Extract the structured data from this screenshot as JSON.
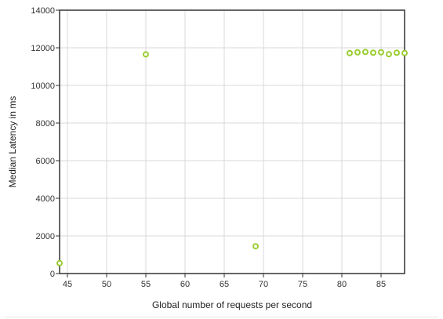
{
  "chart_data": {
    "type": "scatter",
    "title": "",
    "xlabel": "Global number of requests per second",
    "ylabel": "Median Latency in ms",
    "xlim": [
      44,
      88
    ],
    "ylim": [
      0,
      14000
    ],
    "x_ticks": [
      45,
      50,
      55,
      60,
      65,
      70,
      75,
      80,
      85
    ],
    "y_ticks": [
      0,
      2000,
      4000,
      6000,
      8000,
      10000,
      12000,
      14000
    ],
    "x_tick_labels": [
      "45",
      "50",
      "55",
      "60",
      "65",
      "70",
      "75",
      "80",
      "85"
    ],
    "y_tick_labels": [
      "0",
      "2000",
      "4000",
      "6000",
      "8000",
      "10000",
      "12000",
      "14000"
    ],
    "grid": true,
    "legend": "none",
    "marker_color": "#9acd32",
    "series": [
      {
        "points": [
          [
            44,
            550
          ],
          [
            55,
            11650
          ],
          [
            69,
            1450
          ],
          [
            81,
            11720
          ],
          [
            82,
            11760
          ],
          [
            83,
            11780
          ],
          [
            84,
            11740
          ],
          [
            85,
            11760
          ],
          [
            86,
            11660
          ],
          [
            87,
            11740
          ],
          [
            88,
            11720
          ]
        ]
      }
    ]
  }
}
